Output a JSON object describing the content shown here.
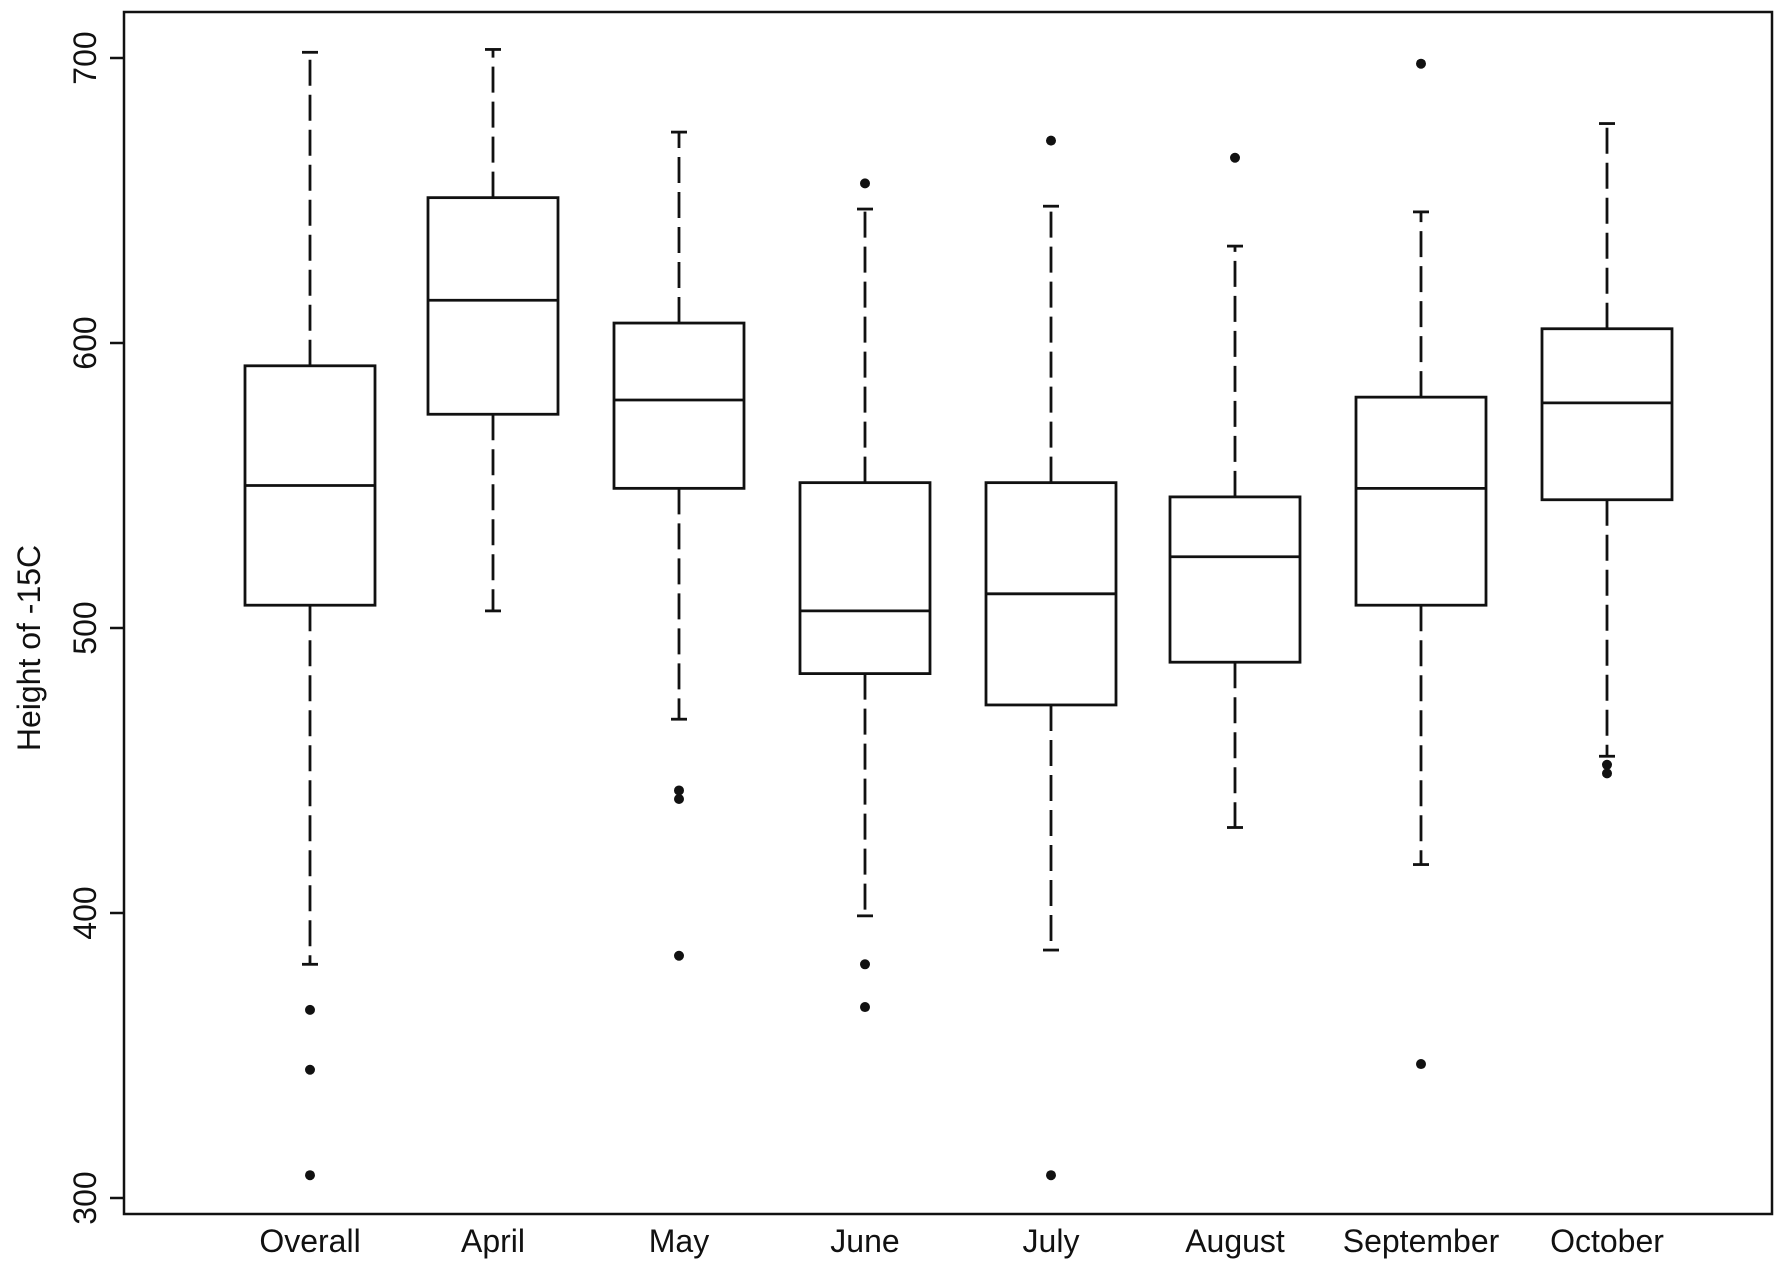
{
  "chart_data": {
    "type": "box",
    "title": "",
    "xlabel": "",
    "ylabel": "Height of -15C",
    "ylim": [
      300,
      700
    ],
    "yticks": [
      300,
      400,
      500,
      600,
      700
    ],
    "ytick_labels": [
      "300",
      "400",
      "500",
      "600",
      "700"
    ],
    "grid": false,
    "categories": [
      "Overall",
      "April",
      "May",
      "June",
      "July",
      "August",
      "September",
      "October"
    ],
    "boxes": [
      {
        "label": "Overall",
        "whisker_low": 382,
        "q1": 508,
        "median": 550,
        "q3": 592,
        "whisker_high": 702,
        "outliers": [
          366,
          345,
          308
        ]
      },
      {
        "label": "April",
        "whisker_low": 506,
        "q1": 575,
        "median": 615,
        "q3": 651,
        "whisker_high": 703,
        "outliers": []
      },
      {
        "label": "May",
        "whisker_low": 468,
        "q1": 549,
        "median": 580,
        "q3": 607,
        "whisker_high": 674,
        "outliers": [
          443,
          440,
          385
        ]
      },
      {
        "label": "June",
        "whisker_low": 399,
        "q1": 484,
        "median": 506,
        "q3": 551,
        "whisker_high": 647,
        "outliers": [
          656,
          382,
          367
        ]
      },
      {
        "label": "July",
        "whisker_low": 387,
        "q1": 473,
        "median": 512,
        "q3": 551,
        "whisker_high": 648,
        "outliers": [
          671,
          308
        ]
      },
      {
        "label": "August",
        "whisker_low": 430,
        "q1": 488,
        "median": 525,
        "q3": 546,
        "whisker_high": 634,
        "outliers": [
          665
        ]
      },
      {
        "label": "September",
        "whisker_low": 417,
        "q1": 508,
        "median": 549,
        "q3": 581,
        "whisker_high": 646,
        "outliers": [
          698,
          347
        ]
      },
      {
        "label": "October",
        "whisker_low": 455,
        "q1": 545,
        "median": 579,
        "q3": 605,
        "whisker_high": 677,
        "outliers": [
          452,
          449
        ]
      }
    ]
  }
}
